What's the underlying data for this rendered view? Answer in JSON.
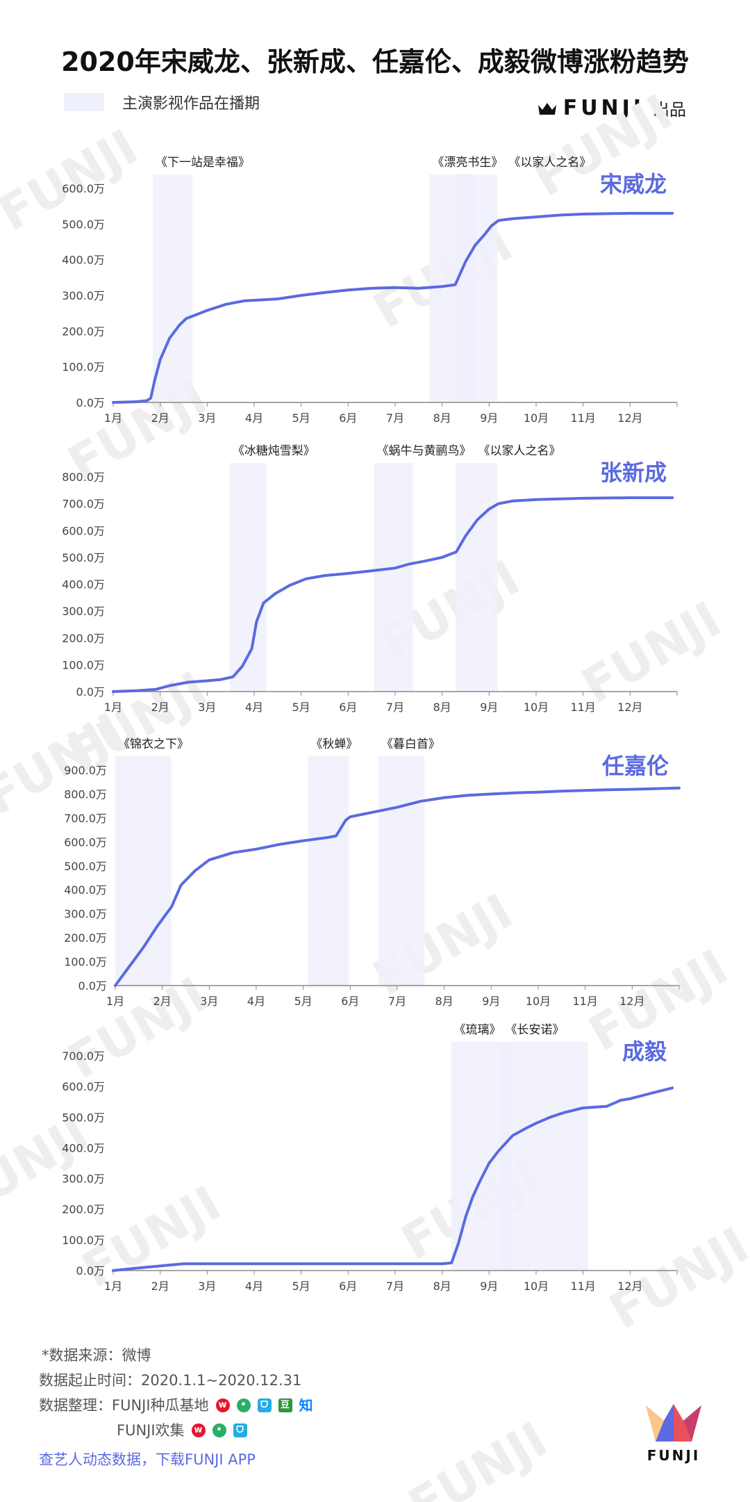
{
  "title": "2020年宋威龙、张新成、任嘉伦、成毅微博涨粉趋势",
  "legend": {
    "label": "主演影视作品在播期"
  },
  "brand": {
    "name": "FUNJI",
    "suffix": "出品",
    "icon": "crown-icon"
  },
  "watermark": {
    "text": "FUNJI"
  },
  "colors": {
    "line": "#5b6ae0",
    "band": "#eef0fb",
    "name": "#5b6ae0",
    "axis": "#888888"
  },
  "chart_data": [
    {
      "type": "line",
      "name": "宋威龙",
      "yticks": [
        "0.0万",
        "100.0万",
        "200.0万",
        "300.0万",
        "400.0万",
        "500.0万",
        "600.0万"
      ],
      "ylim": [
        0,
        600
      ],
      "xticks": [
        "1月",
        "2月",
        "3月",
        "4月",
        "5月",
        "6月",
        "7月",
        "8月",
        "9月",
        "10月",
        "11月",
        "12月"
      ],
      "xlim": [
        1,
        13
      ],
      "bands": [
        {
          "start": 1.84,
          "end": 2.69,
          "label": "《下一站是幸福》"
        },
        {
          "start": 7.73,
          "end": 8.69,
          "label": "《漂亮书生》"
        },
        {
          "start": 8.29,
          "end": 9.18,
          "label": "《以家人之名》"
        }
      ],
      "x": [
        1,
        1.5,
        1.72,
        1.8,
        1.88,
        2,
        2.2,
        2.4,
        2.55,
        2.75,
        3,
        3.4,
        3.8,
        4.5,
        5,
        5.5,
        6,
        6.5,
        7,
        7.5,
        8,
        8.28,
        8.5,
        8.7,
        8.9,
        9.05,
        9.2,
        9.5,
        10,
        10.5,
        11,
        12,
        12.9
      ],
      "y": [
        0,
        2,
        5,
        12,
        60,
        120,
        180,
        215,
        235,
        245,
        258,
        275,
        285,
        290,
        300,
        308,
        315,
        320,
        322,
        320,
        325,
        330,
        395,
        440,
        470,
        495,
        510,
        515,
        520,
        525,
        528,
        530,
        530
      ]
    },
    {
      "type": "line",
      "name": "张新成",
      "yticks": [
        "0.0万",
        "100.0万",
        "200.0万",
        "300.0万",
        "400.0万",
        "500.0万",
        "600.0万",
        "700.0万",
        "800.0万"
      ],
      "ylim": [
        0,
        800
      ],
      "xticks": [
        "1月",
        "2月",
        "3月",
        "4月",
        "5月",
        "6月",
        "7月",
        "8月",
        "9月",
        "10月",
        "11月",
        "12月"
      ],
      "xlim": [
        1,
        13
      ],
      "bands": [
        {
          "start": 3.48,
          "end": 4.26,
          "label": "《冰糖炖雪梨》"
        },
        {
          "start": 6.55,
          "end": 7.38,
          "label": "《蜗牛与黄鹂鸟》"
        },
        {
          "start": 8.29,
          "end": 9.18,
          "label": "《以家人之名》"
        }
      ],
      "x": [
        1,
        1.5,
        1.9,
        2.2,
        2.6,
        3,
        3.3,
        3.55,
        3.75,
        3.95,
        4.05,
        4.2,
        4.45,
        4.75,
        5.1,
        5.5,
        6,
        6.5,
        7,
        7.3,
        7.6,
        8,
        8.3,
        8.5,
        8.75,
        9,
        9.2,
        9.5,
        10,
        11,
        12,
        12.9
      ],
      "y": [
        0,
        3,
        8,
        22,
        35,
        40,
        45,
        55,
        95,
        160,
        260,
        330,
        365,
        395,
        420,
        432,
        440,
        450,
        460,
        475,
        485,
        500,
        520,
        580,
        640,
        680,
        700,
        710,
        715,
        720,
        722,
        722
      ]
    },
    {
      "type": "line",
      "name": "任嘉伦",
      "yticks": [
        "0.0万",
        "100.0万",
        "200.0万",
        "300.0万",
        "400.0万",
        "500.0万",
        "600.0万",
        "700.0万",
        "800.0万",
        "900.0万"
      ],
      "ylim": [
        0,
        900
      ],
      "xticks": [
        "1月",
        "2月",
        "3月",
        "4月",
        "5月",
        "6月",
        "7月",
        "8月",
        "9月",
        "10月",
        "11月",
        "12月"
      ],
      "xlim": [
        1,
        13
      ],
      "bands": [
        {
          "start": 1.0,
          "end": 2.19,
          "label": "《锦衣之下》"
        },
        {
          "start": 5.1,
          "end": 5.97,
          "label": "《秋蝉》"
        },
        {
          "start": 6.6,
          "end": 7.58,
          "label": "《暮白首》"
        }
      ],
      "x": [
        1,
        1.3,
        1.6,
        1.9,
        2.2,
        2.4,
        2.7,
        3,
        3.5,
        4,
        4.5,
        5,
        5.5,
        5.7,
        5.9,
        6,
        6.5,
        7,
        7.5,
        8,
        8.5,
        9,
        9.5,
        10,
        10.5,
        11,
        11.5,
        12,
        13
      ],
      "y": [
        0,
        80,
        160,
        250,
        330,
        420,
        480,
        525,
        555,
        570,
        590,
        605,
        618,
        625,
        690,
        705,
        725,
        745,
        770,
        785,
        795,
        800,
        805,
        808,
        812,
        815,
        818,
        820,
        825
      ]
    },
    {
      "type": "line",
      "name": "成毅",
      "yticks": [
        "0.0万",
        "100.0万",
        "200.0万",
        "300.0万",
        "400.0万",
        "500.0万",
        "600.0万",
        "700.0万"
      ],
      "ylim": [
        0,
        700
      ],
      "xticks": [
        "1月",
        "2月",
        "3月",
        "4月",
        "5月",
        "6月",
        "7月",
        "8月",
        "9月",
        "10月",
        "11月",
        "12月"
      ],
      "xlim": [
        1,
        13
      ],
      "bands": [
        {
          "start": 8.19,
          "end": 9.45,
          "label": "《琉璃》"
        },
        {
          "start": 9.22,
          "end": 11.1,
          "label": "《长安诺》"
        }
      ],
      "x": [
        1,
        1.5,
        2,
        2.5,
        3,
        4,
        5,
        6,
        7,
        7.5,
        8,
        8.2,
        8.35,
        8.5,
        8.65,
        8.8,
        9,
        9.2,
        9.5,
        9.8,
        10,
        10.3,
        10.6,
        11,
        11.5,
        11.8,
        12,
        12.5,
        12.9
      ],
      "y": [
        0,
        8,
        15,
        22,
        22,
        22,
        22,
        22,
        22,
        22,
        22,
        25,
        90,
        175,
        240,
        290,
        350,
        390,
        440,
        465,
        480,
        500,
        515,
        530,
        535,
        555,
        560,
        580,
        595
      ]
    }
  ],
  "footer": {
    "source": "*数据来源：微博",
    "period": "数据起止时间：2020.1.1~2020.12.31",
    "compiler_label": "数据整理：FUNJI种瓜基地",
    "compiler_second": "FUNJI欢集",
    "zhihu": "知",
    "douban": "豆",
    "bili": "ᗜ",
    "promo": "查艺人动态数据，下载FUNJI APP",
    "logo_text": "FUNJI",
    "icons": [
      "weibo-icon",
      "wechat-icon",
      "bilibili-icon",
      "douban-icon",
      "zhihu-icon"
    ]
  }
}
